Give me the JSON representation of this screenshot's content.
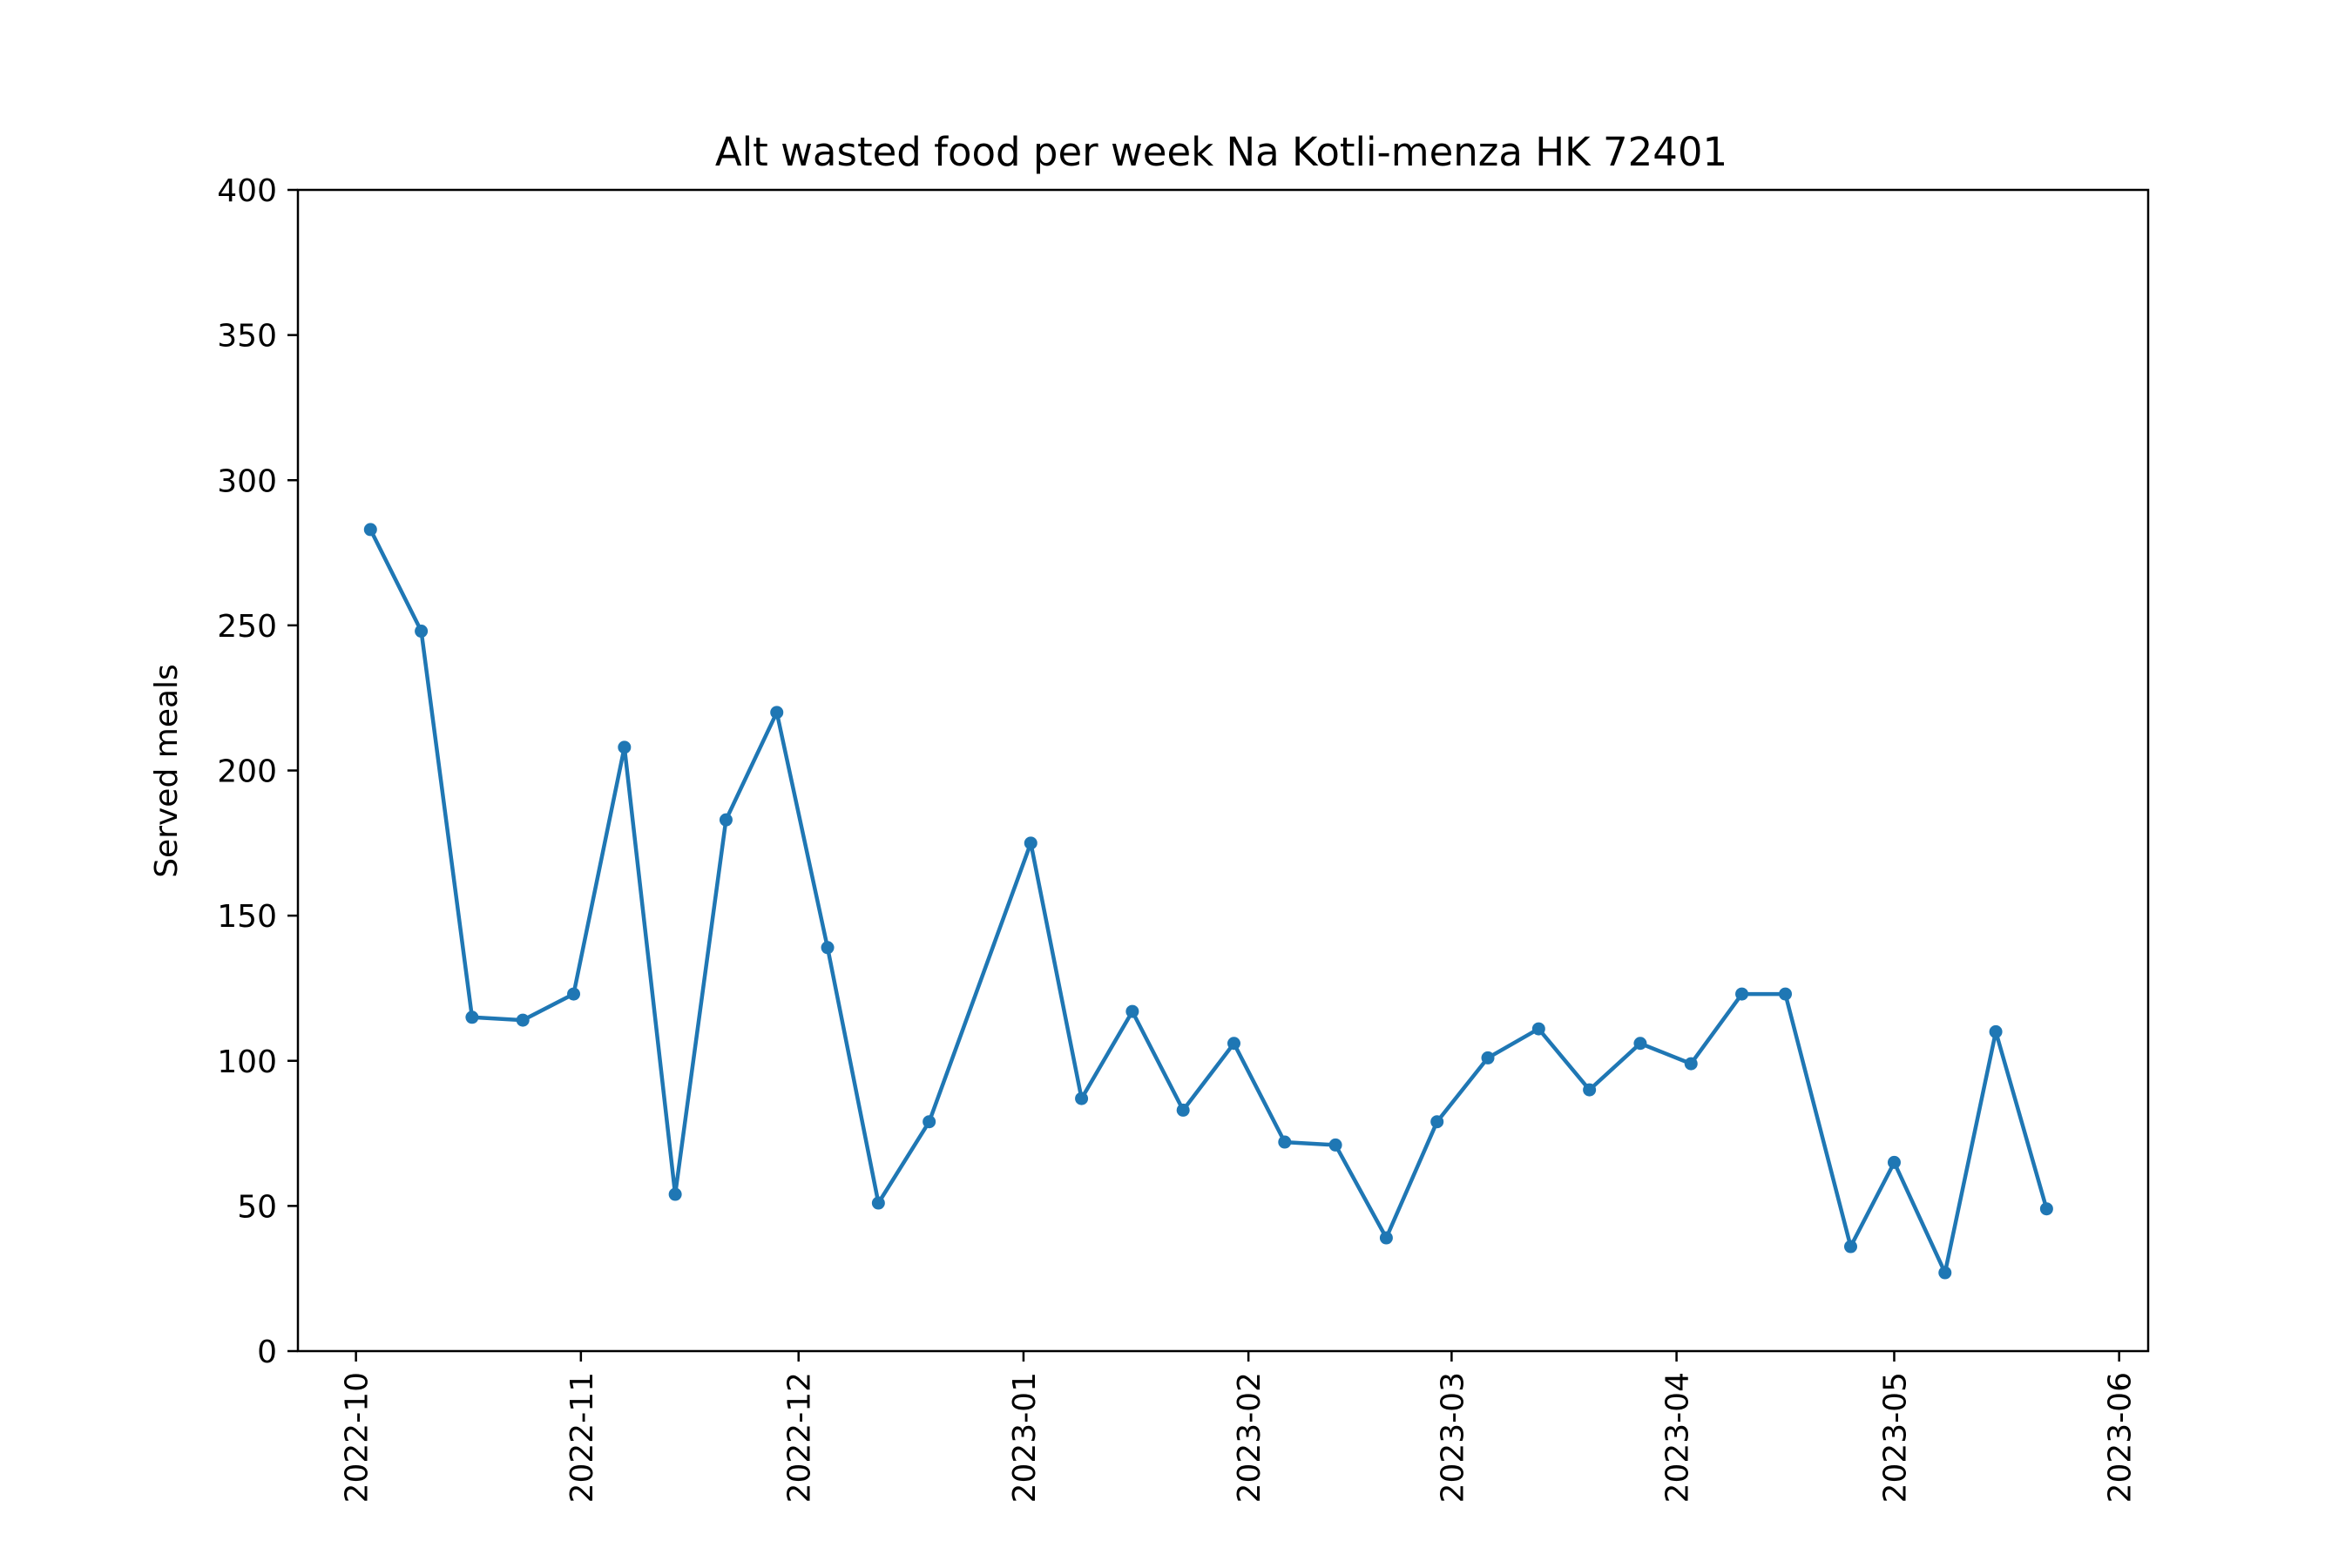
{
  "chart_data": {
    "type": "line",
    "title": "Alt wasted food per week Na Kotli-menza HK 72401",
    "xlabel": "",
    "ylabel": "Served meals",
    "ylim": [
      0,
      400
    ],
    "yticks": [
      0,
      50,
      100,
      150,
      200,
      250,
      300,
      350,
      400
    ],
    "xlim": [
      "2022-09-23",
      "2023-06-05"
    ],
    "xticks": [
      "2022-10",
      "2022-11",
      "2022-12",
      "2023-01",
      "2023-02",
      "2023-03",
      "2023-04",
      "2023-05",
      "2023-06"
    ],
    "grid": false,
    "color": "#1f77b4",
    "series": [
      {
        "x": [
          "2022-10-03",
          "2022-10-10",
          "2022-10-17",
          "2022-10-24",
          "2022-10-31",
          "2022-11-07",
          "2022-11-14",
          "2022-11-21",
          "2022-11-28",
          "2022-12-05",
          "2022-12-12",
          "2022-12-19",
          "2023-01-02",
          "2023-01-09",
          "2023-01-16",
          "2023-01-23",
          "2023-01-30",
          "2023-02-06",
          "2023-02-13",
          "2023-02-20",
          "2023-02-27",
          "2023-03-06",
          "2023-03-13",
          "2023-03-20",
          "2023-03-27",
          "2023-04-03",
          "2023-04-10",
          "2023-04-16",
          "2023-04-25",
          "2023-05-01",
          "2023-05-08",
          "2023-05-15",
          "2023-05-22"
        ],
        "values": [
          283,
          248,
          115,
          114,
          123,
          208,
          54,
          183,
          220,
          139,
          51,
          79,
          175,
          87,
          117,
          83,
          106,
          72,
          71,
          39,
          79,
          101,
          111,
          90,
          106,
          99,
          123,
          123,
          36,
          65,
          27,
          110,
          49
        ]
      }
    ]
  }
}
